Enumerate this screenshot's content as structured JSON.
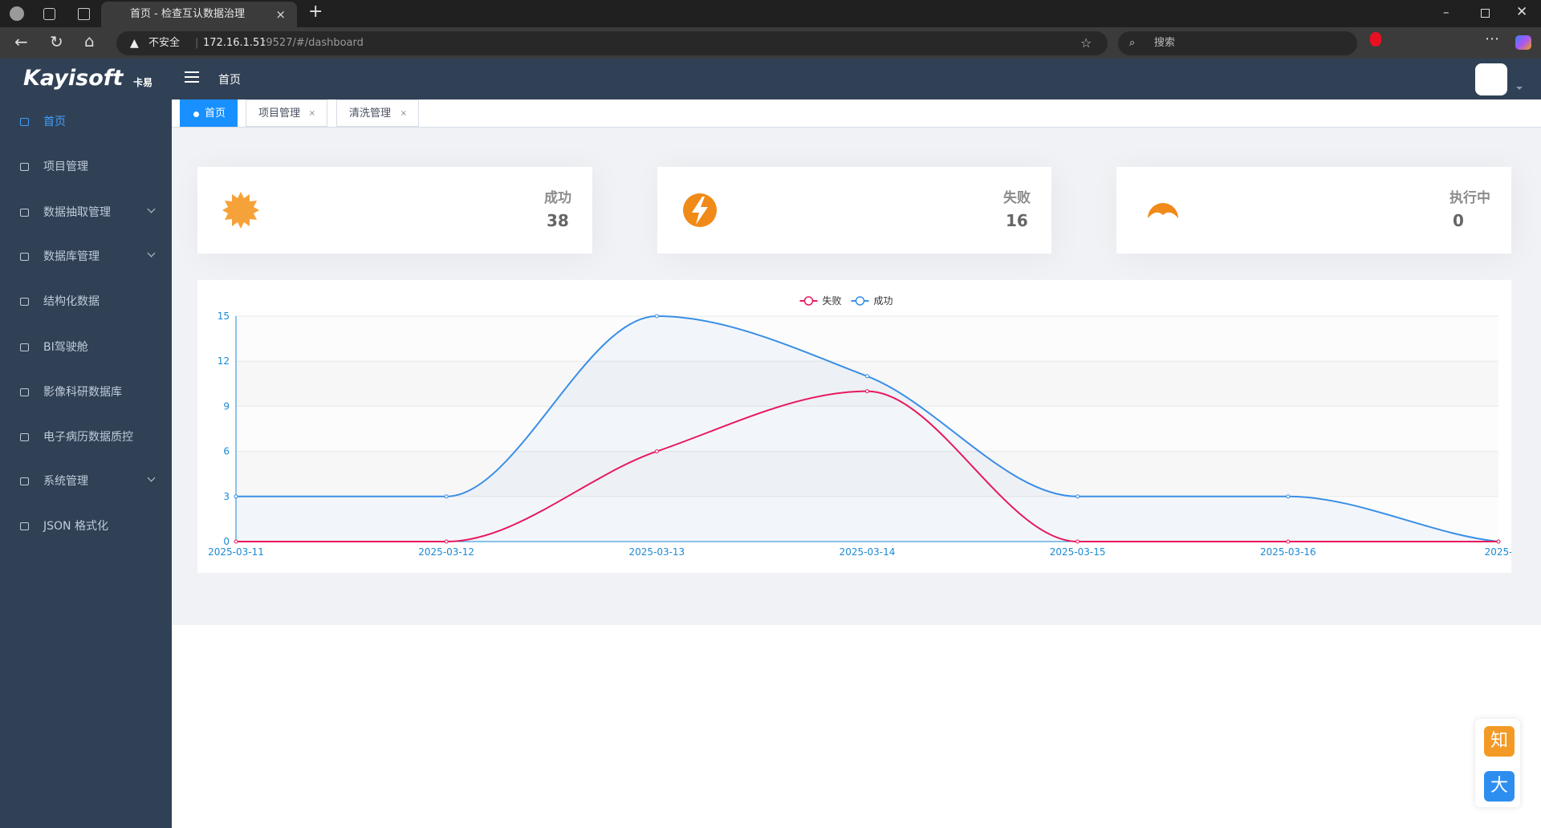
{
  "browser": {
    "tab_title": "首页 - 检查互认数据治理",
    "security": "不安全",
    "url_host": "172.16.1.51",
    "url_rest": ":9527/#/dashboard",
    "search": "搜索"
  },
  "header": {
    "logo": "Kayisoft",
    "logo_sub": "卡易",
    "breadcrumb": "首页"
  },
  "sidebar": {
    "items": [
      "首页",
      "项目管理",
      "数据抽取管理",
      "数据库管理",
      "结构化数据",
      "BI驾驶舱",
      "影像科研数据库",
      "电子病历数据质控",
      "系统管理",
      "JSON 格式化"
    ]
  },
  "tabs": [
    "首页",
    "项目管理",
    "清洗管理"
  ],
  "cards": [
    {
      "label": "成功",
      "value": "38"
    },
    {
      "label": "失败",
      "value": "16"
    },
    {
      "label": "执行中",
      "value": "0"
    }
  ],
  "chart_data": {
    "type": "line",
    "categories": [
      "2025-03-11",
      "2025-03-12",
      "2025-03-13",
      "2025-03-14",
      "2025-03-15",
      "2025-03-16",
      "2025-"
    ],
    "series": [
      {
        "name": "失败",
        "color": "#e8185d",
        "values": [
          0,
          0,
          6,
          10,
          0,
          0,
          0
        ]
      },
      {
        "name": "成功",
        "color": "#3a8ee6",
        "values": [
          3,
          3,
          15,
          11,
          3,
          3,
          0
        ],
        "area": true
      }
    ],
    "ylim": [
      0,
      15
    ],
    "yticks": [
      0,
      3,
      6,
      9,
      12,
      15
    ],
    "grid": true,
    "smooth": true,
    "axis_color": "#1a8ad6"
  },
  "float_buttons": [
    "知",
    "大"
  ]
}
